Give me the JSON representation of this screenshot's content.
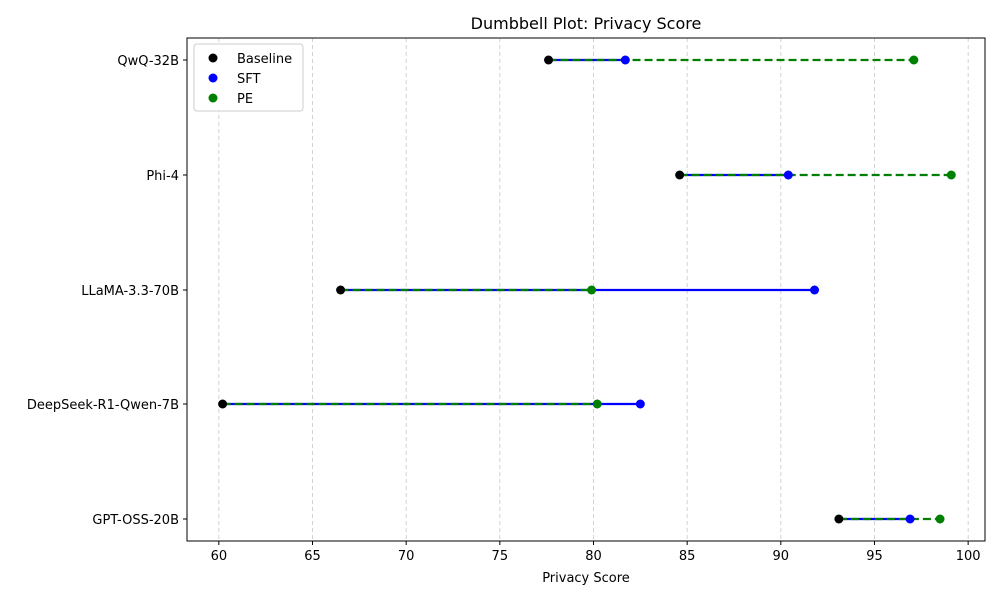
{
  "chart_data": {
    "type": "dumbbell",
    "title": "Dumbbell Plot: Privacy Score",
    "xlabel": "Privacy Score",
    "ylabel": "",
    "xlim": [
      58.3,
      100.9
    ],
    "xticks": [
      60,
      65,
      70,
      75,
      80,
      85,
      90,
      95,
      100
    ],
    "grid": "x-dashed",
    "legend_position": "top-left",
    "categories": [
      "QwQ-32B",
      "Phi-4",
      "LLaMA-3.3-70B",
      "DeepSeek-R1-Qwen-7B",
      "GPT-OSS-20B"
    ],
    "series": [
      {
        "name": "Baseline",
        "color": "#000000",
        "values": [
          77.6,
          84.6,
          66.5,
          60.2,
          93.1
        ]
      },
      {
        "name": "SFT",
        "color": "#0000ff",
        "values": [
          81.7,
          90.4,
          91.8,
          82.5,
          96.9
        ]
      },
      {
        "name": "PE",
        "color": "#008000",
        "values": [
          97.1,
          99.1,
          79.9,
          80.2,
          98.5
        ]
      }
    ]
  }
}
